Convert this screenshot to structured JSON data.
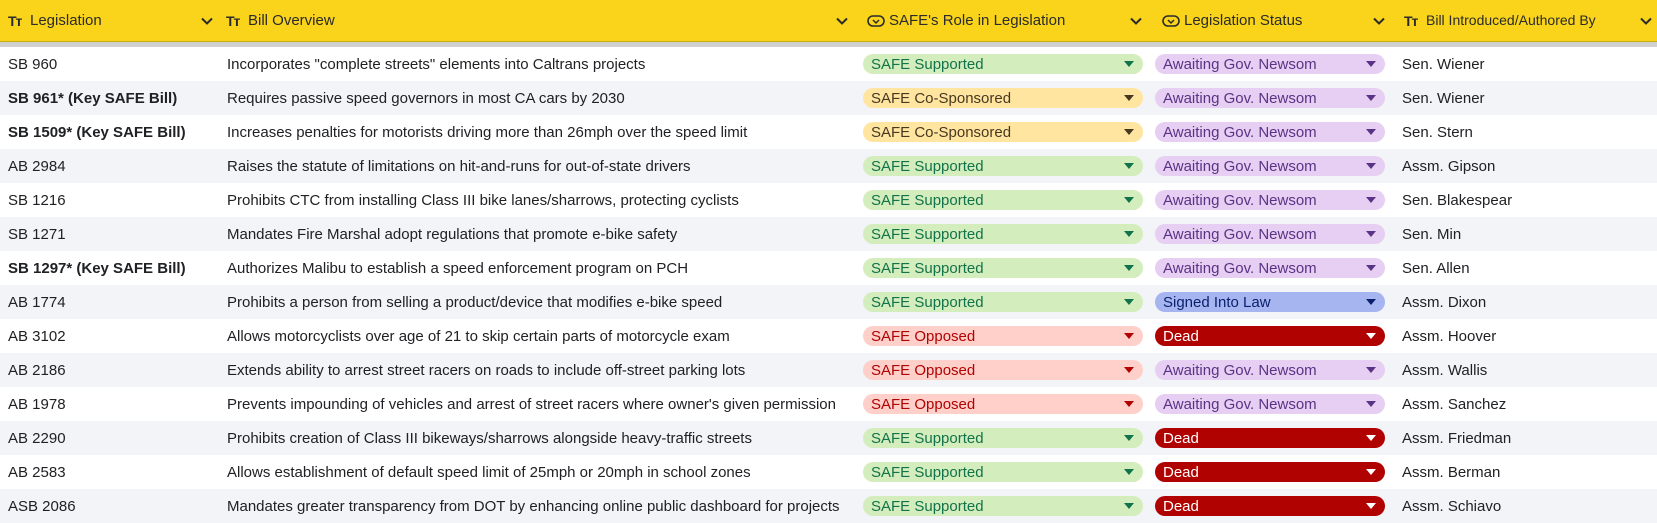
{
  "columns": [
    {
      "key": "legislation",
      "label": "Legislation",
      "icon": "text-type-icon"
    },
    {
      "key": "overview",
      "label": "Bill Overview",
      "icon": "text-type-icon"
    },
    {
      "key": "role",
      "label": "SAFE's Role in Legislation",
      "icon": "dropdown-type-icon"
    },
    {
      "key": "status",
      "label": "Legislation Status",
      "icon": "dropdown-type-icon"
    },
    {
      "key": "author",
      "label": "Bill Introduced/Authored By",
      "icon": "text-type-icon"
    }
  ],
  "chip_styles": {
    "SAFE Supported": {
      "bg": "#d4edbc",
      "fg": "#11734b"
    },
    "SAFE Co-Sponsored": {
      "bg": "#ffe5a0",
      "fg": "#473821"
    },
    "SAFE Opposed": {
      "bg": "#ffcfc9",
      "fg": "#b10202"
    },
    "Awaiting Gov. Newsom": {
      "bg": "#e6cff2",
      "fg": "#5a3286"
    },
    "Signed Into Law": {
      "bg": "#a6b5f0",
      "fg": "#0a1f6b"
    },
    "Dead": {
      "bg": "#b10202",
      "fg": "#ffffff"
    }
  },
  "rows": [
    {
      "legislation": "SB 960",
      "key": false,
      "overview": "Incorporates \"complete streets\" elements into Caltrans projects",
      "role": "SAFE Supported",
      "status": "Awaiting Gov. Newsom",
      "author": "Sen. Wiener"
    },
    {
      "legislation": "SB 961* (Key SAFE Bill)",
      "key": true,
      "overview": "Requires passive speed governors in most CA cars by 2030",
      "role": "SAFE Co-Sponsored",
      "status": "Awaiting Gov. Newsom",
      "author": "Sen. Wiener"
    },
    {
      "legislation": "SB 1509* (Key SAFE Bill)",
      "key": true,
      "overview": "Increases penalties for motorists driving more than 26mph over the speed limit",
      "role": "SAFE Co-Sponsored",
      "status": "Awaiting Gov. Newsom",
      "author": "Sen. Stern"
    },
    {
      "legislation": "AB 2984",
      "key": false,
      "overview": "Raises the statute of limitations on hit-and-runs for out-of-state drivers",
      "role": "SAFE Supported",
      "status": "Awaiting Gov. Newsom",
      "author": "Assm. Gipson"
    },
    {
      "legislation": "SB 1216",
      "key": false,
      "overview": "Prohibits CTC from installing Class III bike lanes/sharrows, protecting cyclists",
      "role": "SAFE Supported",
      "status": "Awaiting Gov. Newsom",
      "author": "Sen. Blakespear"
    },
    {
      "legislation": "SB 1271",
      "key": false,
      "overview": "Mandates Fire Marshal adopt regulations that promote e-bike safety",
      "role": "SAFE Supported",
      "status": "Awaiting Gov. Newsom",
      "author": "Sen. Min"
    },
    {
      "legislation": "SB 1297* (Key SAFE Bill)",
      "key": true,
      "overview": "Authorizes Malibu to establish a speed enforcement program on PCH",
      "role": "SAFE Supported",
      "status": "Awaiting Gov. Newsom",
      "author": "Sen. Allen"
    },
    {
      "legislation": "AB 1774",
      "key": false,
      "overview": "Prohibits a person from selling a product/device that modifies e-bike speed",
      "role": "SAFE Supported",
      "status": "Signed Into Law",
      "author": "Assm. Dixon"
    },
    {
      "legislation": "AB 3102",
      "key": false,
      "overview": "Allows motorcyclists over age of 21 to skip certain parts of motorcycle exam",
      "role": "SAFE Opposed",
      "status": "Dead",
      "author": "Assm. Hoover"
    },
    {
      "legislation": "AB 2186",
      "key": false,
      "overview": "Extends ability to arrest street racers on roads to include off-street parking lots",
      "role": "SAFE Opposed",
      "status": "Awaiting Gov. Newsom",
      "author": "Assm. Wallis"
    },
    {
      "legislation": "AB 1978",
      "key": false,
      "overview": "Prevents impounding of vehicles and arrest of street racers where owner's given permission",
      "role": "SAFE Opposed",
      "status": "Awaiting Gov. Newsom",
      "author": "Assm. Sanchez"
    },
    {
      "legislation": "AB 2290",
      "key": false,
      "overview": "Prohibits creation of Class III bikeways/sharrows alongside heavy-traffic streets",
      "role": "SAFE Supported",
      "status": "Dead",
      "author": "Assm. Friedman"
    },
    {
      "legislation": "AB 2583",
      "key": false,
      "overview": "Allows establishment of default speed limit of 25mph or 20mph in school zones",
      "role": "SAFE Supported",
      "status": "Dead",
      "author": "Assm. Berman"
    },
    {
      "legislation": "ASB 2086",
      "key": false,
      "overview": "Mandates greater transparency from DOT by enhancing online public dashboard for projects",
      "role": "SAFE Supported",
      "status": "Dead",
      "author": "Assm. Schiavo"
    }
  ]
}
